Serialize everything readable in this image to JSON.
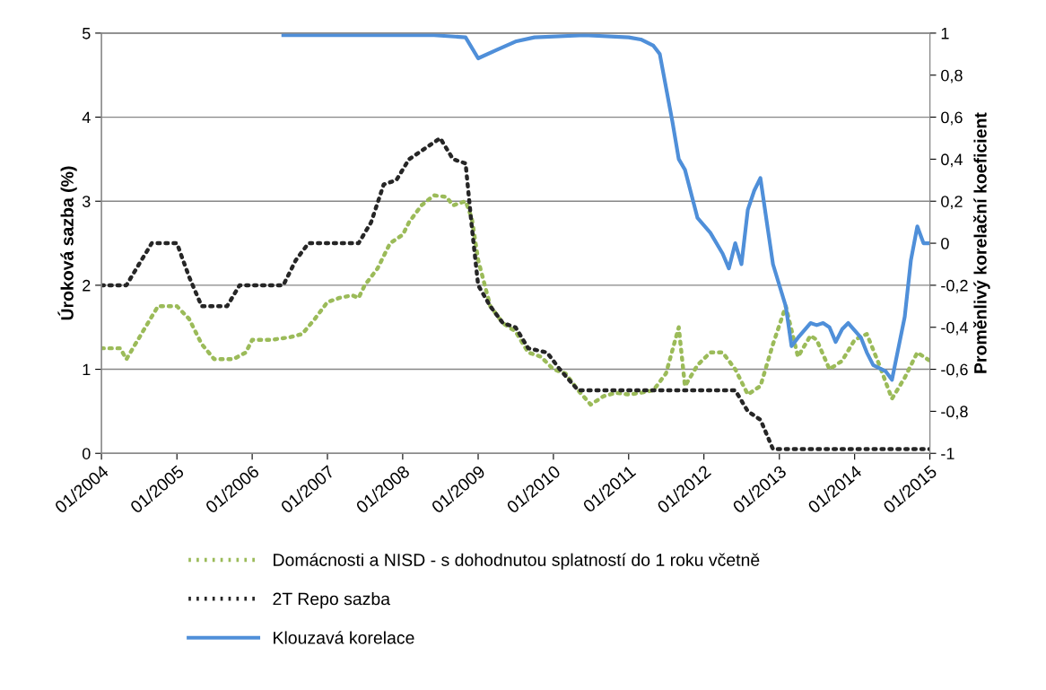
{
  "chart_data": {
    "type": "line",
    "ylabel": "Úroková sazba (%)",
    "y2label": "Proměnlivý korelační koeficient",
    "xlim": [
      "2004-01",
      "2015-01"
    ],
    "xticks": [
      {
        "value": "2004-01",
        "label": "01/2004"
      },
      {
        "value": "2005-01",
        "label": "01/2005"
      },
      {
        "value": "2006-01",
        "label": "01/2006"
      },
      {
        "value": "2007-01",
        "label": "01/2007"
      },
      {
        "value": "2008-01",
        "label": "01/2008"
      },
      {
        "value": "2009-01",
        "label": "01/2009"
      },
      {
        "value": "2010-01",
        "label": "01/2010"
      },
      {
        "value": "2011-01",
        "label": "01/2011"
      },
      {
        "value": "2012-01",
        "label": "01/2012"
      },
      {
        "value": "2013-01",
        "label": "01/2013"
      },
      {
        "value": "2014-01",
        "label": "01/2014"
      },
      {
        "value": "2015-01",
        "label": "01/2015"
      }
    ],
    "ylim": [
      0,
      5
    ],
    "yticks": [
      0,
      1,
      2,
      3,
      4,
      5
    ],
    "y2lim": [
      -1,
      1
    ],
    "y2ticks": [
      {
        "value": -1,
        "label": "-1"
      },
      {
        "value": -0.8,
        "label": "-0,8"
      },
      {
        "value": -0.6,
        "label": "-0,6"
      },
      {
        "value": -0.4,
        "label": "-0,4"
      },
      {
        "value": -0.2,
        "label": "-0,2"
      },
      {
        "value": 0,
        "label": "0"
      },
      {
        "value": 0.2,
        "label": "0,2"
      },
      {
        "value": 0.4,
        "label": "0,4"
      },
      {
        "value": 0.6,
        "label": "0,6"
      },
      {
        "value": 0.8,
        "label": "0,8"
      },
      {
        "value": 1,
        "label": "1"
      }
    ],
    "grid": "y",
    "legend": "bottom",
    "series": [
      {
        "name": "Domácnosti a NISD - s dohodnutou splatností do 1 roku včetně",
        "color": "#9bbb59",
        "line_style": "dotted",
        "x": [
          "2004-01",
          "2004-04",
          "2004-05",
          "2004-08",
          "2004-10",
          "2005-01",
          "2005-03",
          "2005-05",
          "2005-07",
          "2005-10",
          "2005-12",
          "2006-01",
          "2006-04",
          "2006-07",
          "2006-09",
          "2006-11",
          "2007-01",
          "2007-03",
          "2007-05",
          "2007-06",
          "2007-07",
          "2007-09",
          "2007-11",
          "2008-01",
          "2008-02",
          "2008-04",
          "2008-06",
          "2008-08",
          "2008-09",
          "2008-11",
          "2008-12",
          "2009-01",
          "2009-03",
          "2009-05",
          "2009-07",
          "2009-09",
          "2009-11",
          "2010-01",
          "2010-03",
          "2010-05",
          "2010-07",
          "2010-09",
          "2010-11",
          "2011-01",
          "2011-03",
          "2011-05",
          "2011-07",
          "2011-09",
          "2011-10",
          "2011-12",
          "2012-02",
          "2012-04",
          "2012-06",
          "2012-08",
          "2012-10",
          "2012-12",
          "2013-02",
          "2013-04",
          "2013-06",
          "2013-07",
          "2013-09",
          "2013-11",
          "2014-01",
          "2014-03",
          "2014-05",
          "2014-07",
          "2014-09",
          "2014-11",
          "2015-01"
        ],
        "values": [
          1.25,
          1.25,
          1.12,
          1.5,
          1.75,
          1.75,
          1.6,
          1.3,
          1.12,
          1.12,
          1.2,
          1.35,
          1.35,
          1.38,
          1.42,
          1.6,
          1.8,
          1.85,
          1.88,
          1.85,
          2.0,
          2.2,
          2.5,
          2.6,
          2.75,
          2.95,
          3.07,
          3.05,
          2.95,
          3.0,
          2.8,
          2.3,
          1.75,
          1.55,
          1.45,
          1.2,
          1.15,
          1.0,
          0.95,
          0.75,
          0.58,
          0.68,
          0.72,
          0.7,
          0.72,
          0.75,
          0.95,
          1.5,
          0.8,
          1.05,
          1.2,
          1.2,
          1.0,
          0.7,
          0.8,
          1.3,
          1.75,
          1.15,
          1.4,
          1.35,
          1.0,
          1.1,
          1.35,
          1.42,
          1.05,
          0.65,
          0.9,
          1.2,
          1.1
        ]
      },
      {
        "name": "2T Repo sazba",
        "color": "#262626",
        "line_style": "dotted",
        "x": [
          "2004-01",
          "2004-05",
          "2004-07",
          "2004-09",
          "2005-01",
          "2005-03",
          "2005-05",
          "2005-09",
          "2005-11",
          "2006-06",
          "2006-08",
          "2006-10",
          "2007-06",
          "2007-08",
          "2007-10",
          "2007-12",
          "2008-02",
          "2008-07",
          "2008-09",
          "2008-11",
          "2008-12",
          "2009-01",
          "2009-03",
          "2009-05",
          "2009-07",
          "2009-09",
          "2009-12",
          "2010-02",
          "2010-05",
          "2012-06",
          "2012-08",
          "2012-10",
          "2012-12",
          "2015-01"
        ],
        "values": [
          2.0,
          2.0,
          2.25,
          2.5,
          2.5,
          2.1,
          1.75,
          1.75,
          2.0,
          2.0,
          2.3,
          2.5,
          2.5,
          2.75,
          3.2,
          3.25,
          3.5,
          3.75,
          3.5,
          3.45,
          2.7,
          2.0,
          1.75,
          1.55,
          1.5,
          1.25,
          1.2,
          1.0,
          0.75,
          0.75,
          0.5,
          0.4,
          0.05,
          0.05
        ]
      },
      {
        "name": "Klouzavá korelace",
        "color": "#4f8fd9",
        "line_style": "solid",
        "axis": "y2",
        "x": [
          "2006-06",
          "2007-06",
          "2008-06",
          "2008-11",
          "2009-01",
          "2009-04",
          "2009-07",
          "2009-10",
          "2010-06",
          "2011-01",
          "2011-03",
          "2011-05",
          "2011-06",
          "2011-08",
          "2011-09",
          "2011-10",
          "2011-12",
          "2012-02",
          "2012-04",
          "2012-05",
          "2012-06",
          "2012-07",
          "2012-08",
          "2012-09",
          "2012-10",
          "2012-11",
          "2012-12",
          "2013-02",
          "2013-03",
          "2013-04",
          "2013-06",
          "2013-07",
          "2013-08",
          "2013-09",
          "2013-10",
          "2013-11",
          "2013-12",
          "2014-02",
          "2014-03",
          "2014-04",
          "2014-06",
          "2014-07",
          "2014-08",
          "2014-09",
          "2014-10",
          "2014-11",
          "2014-12",
          "2015-01"
        ],
        "values": [
          0.99,
          0.99,
          0.99,
          0.98,
          0.88,
          0.92,
          0.96,
          0.98,
          0.99,
          0.98,
          0.97,
          0.94,
          0.9,
          0.58,
          0.4,
          0.35,
          0.12,
          0.05,
          -0.05,
          -0.12,
          0.0,
          -0.1,
          0.16,
          0.25,
          0.31,
          0.1,
          -0.1,
          -0.3,
          -0.49,
          -0.45,
          -0.38,
          -0.39,
          -0.38,
          -0.4,
          -0.47,
          -0.41,
          -0.38,
          -0.45,
          -0.52,
          -0.58,
          -0.61,
          -0.65,
          -0.5,
          -0.35,
          -0.08,
          0.08,
          0.0,
          0.0
        ]
      }
    ]
  }
}
